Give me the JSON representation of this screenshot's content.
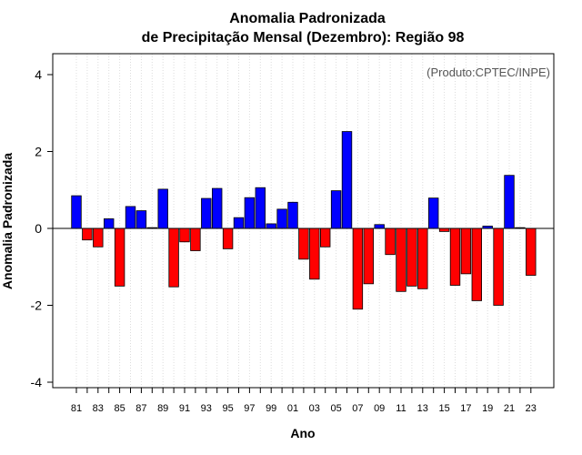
{
  "chart_data": {
    "type": "bar",
    "title": "Anomalia Padronizada",
    "subtitle": "de Precipitação Mensal (Dezembro): Região 98",
    "xlabel": "Ano",
    "ylabel": "Anomalia Padronizada",
    "annotation": "(Produto:CPTEC/INPE)",
    "ylim": [
      -4.2,
      4.5
    ],
    "yticks": [
      -4,
      -2,
      0,
      2,
      4
    ],
    "grid": "vertical dotted",
    "positive_color": "#0000ff",
    "negative_color": "#ff0000",
    "categories": [
      "81",
      "82",
      "83",
      "84",
      "85",
      "86",
      "87",
      "88",
      "89",
      "90",
      "91",
      "92",
      "93",
      "94",
      "95",
      "96",
      "97",
      "98",
      "99",
      "00",
      "01",
      "02",
      "03",
      "04",
      "05",
      "06",
      "07",
      "08",
      "09",
      "10",
      "11",
      "12",
      "13",
      "14",
      "15",
      "16",
      "17",
      "18",
      "19",
      "20",
      "21",
      "22",
      "23"
    ],
    "xtick_labels": [
      "81",
      "83",
      "85",
      "87",
      "89",
      "91",
      "93",
      "95",
      "97",
      "99",
      "01",
      "03",
      "05",
      "07",
      "09",
      "11",
      "13",
      "15",
      "17",
      "19",
      "21",
      "23"
    ],
    "values": [
      0.85,
      -0.3,
      -0.48,
      0.25,
      -1.5,
      0.57,
      0.46,
      0.02,
      1.02,
      -1.52,
      -0.35,
      -0.58,
      0.78,
      1.04,
      -0.53,
      0.28,
      0.8,
      1.06,
      0.12,
      0.5,
      0.68,
      -0.8,
      -1.32,
      -0.48,
      0.98,
      2.52,
      -2.1,
      -1.44,
      0.1,
      -0.68,
      -1.64,
      -1.5,
      -1.57,
      0.79,
      -0.08,
      -1.48,
      -1.18,
      -1.88,
      0.06,
      -2.0,
      1.38,
      0.02,
      -1.22
    ]
  }
}
